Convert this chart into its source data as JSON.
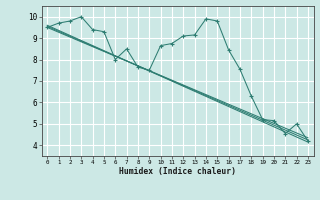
{
  "background_color": "#cce8e5",
  "grid_color": "#ffffff",
  "line_color": "#2e7d72",
  "xlabel": "Humidex (Indice chaleur)",
  "xlim": [
    -0.5,
    23.5
  ],
  "ylim": [
    3.5,
    10.5
  ],
  "xticks": [
    0,
    1,
    2,
    3,
    4,
    5,
    6,
    7,
    8,
    9,
    10,
    11,
    12,
    13,
    14,
    15,
    16,
    17,
    18,
    19,
    20,
    21,
    22,
    23
  ],
  "yticks": [
    4,
    5,
    6,
    7,
    8,
    9,
    10
  ],
  "series": [
    [
      0,
      9.5
    ],
    [
      1,
      9.7
    ],
    [
      2,
      9.8
    ],
    [
      3,
      10.0
    ],
    [
      4,
      9.4
    ],
    [
      5,
      9.3
    ],
    [
      6,
      8.0
    ],
    [
      7,
      8.5
    ],
    [
      8,
      7.65
    ],
    [
      9,
      7.5
    ],
    [
      10,
      8.65
    ],
    [
      11,
      8.75
    ],
    [
      12,
      9.1
    ],
    [
      13,
      9.15
    ],
    [
      14,
      9.9
    ],
    [
      15,
      9.8
    ],
    [
      16,
      8.45
    ],
    [
      17,
      7.55
    ],
    [
      18,
      6.3
    ],
    [
      19,
      5.2
    ],
    [
      20,
      5.15
    ],
    [
      21,
      4.55
    ],
    [
      22,
      5.0
    ],
    [
      23,
      4.2
    ]
  ],
  "trend_lines": [
    {
      "x0": 0,
      "y0": 9.6,
      "x1": 23,
      "y1": 4.15
    },
    {
      "x0": 0,
      "y0": 9.5,
      "x1": 23,
      "y1": 4.35
    },
    {
      "x0": 0,
      "y0": 9.55,
      "x1": 23,
      "y1": 4.25
    }
  ],
  "figsize": [
    3.2,
    2.0
  ],
  "dpi": 100
}
